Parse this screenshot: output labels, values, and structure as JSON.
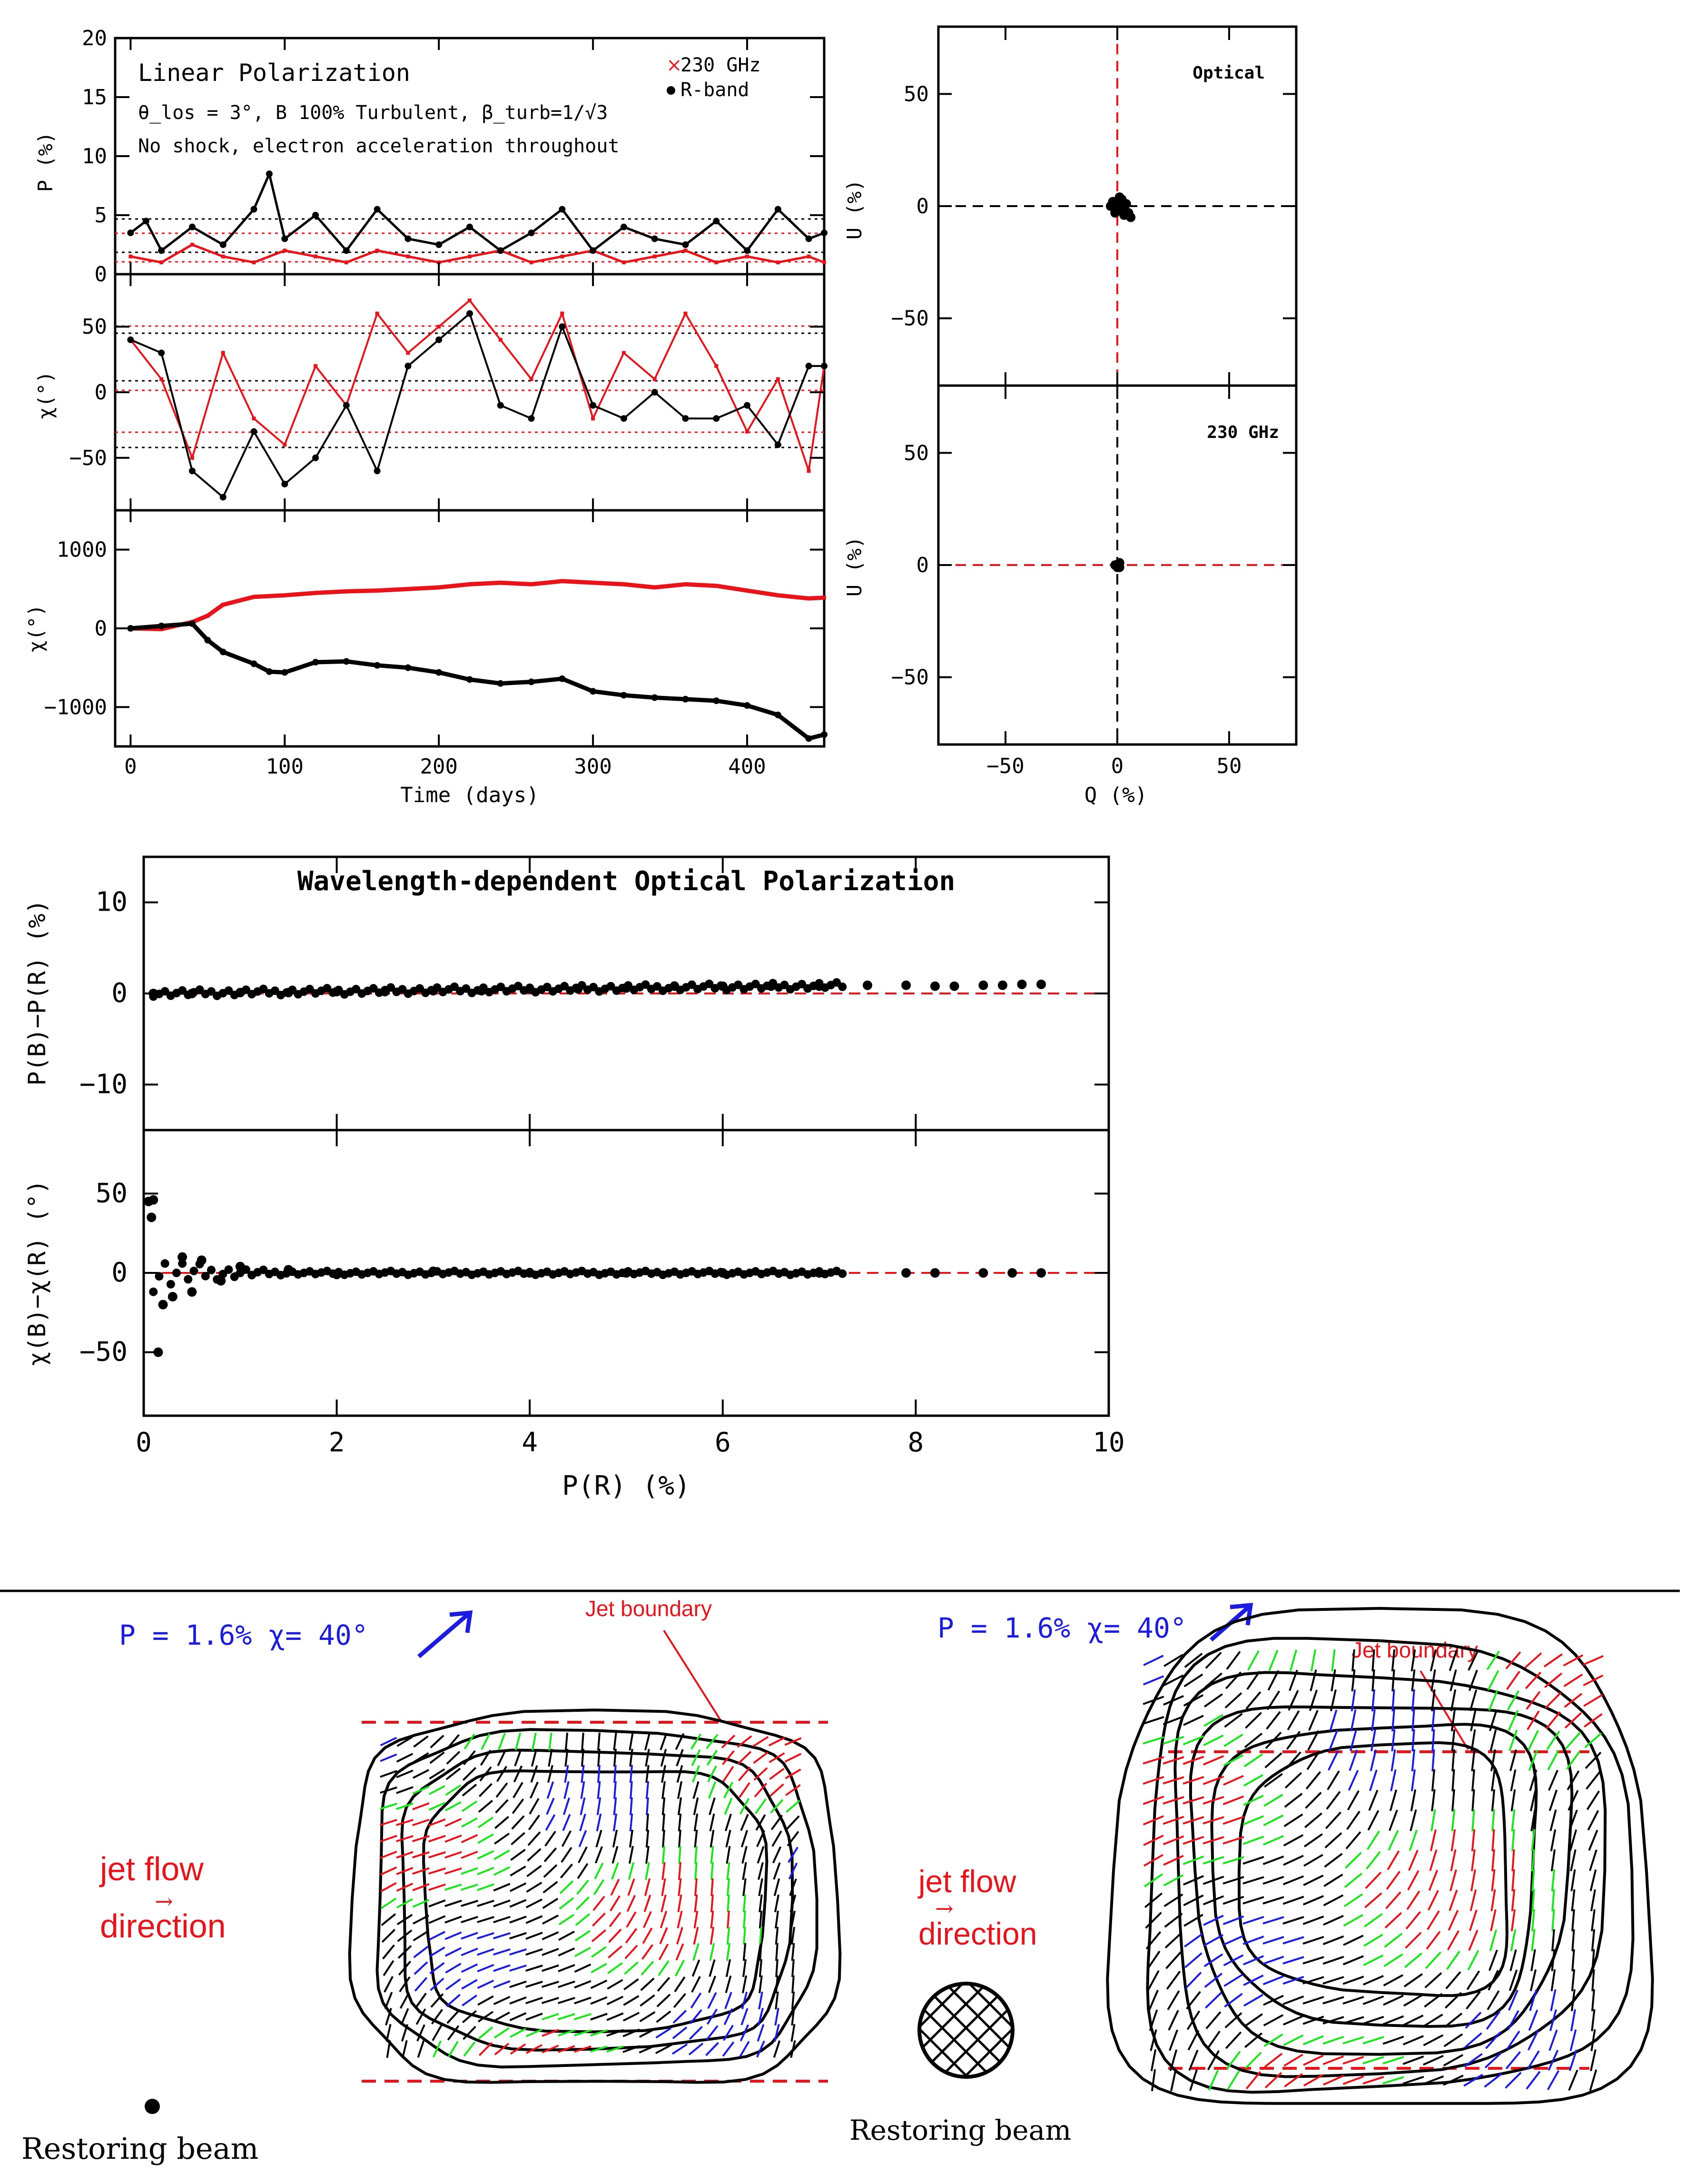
{
  "colors": {
    "red": "#e8141b",
    "black": "#000000",
    "blue": "#1c1ce0",
    "green": "#19e619"
  },
  "chart_data": [
    {
      "type": "scatter",
      "panel": "P vs time",
      "annotation": {
        "title": "Linear Polarization",
        "line2": "θ_los = 3°, B 100% Turbulent, β_turb=1/√3",
        "line3": "No shock, electron acceleration throughout"
      },
      "legend": [
        "230 GHz",
        "R-band"
      ],
      "legend_placement": "top-right",
      "ylabel": "P (%)",
      "xlim": [
        -10,
        450
      ],
      "ylim": [
        0,
        20
      ],
      "yticks": [
        "0",
        "5",
        "10",
        "15",
        "20"
      ],
      "series": [
        {
          "name": "230 GHz",
          "color": "red",
          "x": [
            0,
            20,
            40,
            60,
            80,
            100,
            120,
            140,
            160,
            180,
            200,
            220,
            240,
            260,
            280,
            300,
            320,
            340,
            360,
            380,
            400,
            420,
            440,
            450
          ],
          "y": [
            1.5,
            1.0,
            2.5,
            1.5,
            1.0,
            2.0,
            1.5,
            1.0,
            2.0,
            1.5,
            1.0,
            1.5,
            2.0,
            1.0,
            1.5,
            2.0,
            1.0,
            1.5,
            2.0,
            1.0,
            1.5,
            1.0,
            1.5,
            1.0
          ]
        },
        {
          "name": "R-band",
          "color": "black",
          "x": [
            0,
            10,
            20,
            40,
            60,
            80,
            90,
            100,
            120,
            140,
            160,
            180,
            200,
            220,
            240,
            260,
            280,
            300,
            320,
            340,
            360,
            380,
            400,
            420,
            440,
            450
          ],
          "y": [
            3.5,
            4.5,
            2.0,
            4.0,
            2.5,
            5.5,
            8.5,
            3.0,
            5.0,
            2.0,
            5.5,
            3.0,
            2.5,
            4.0,
            2.0,
            3.5,
            5.5,
            2.0,
            4.0,
            3.0,
            2.5,
            4.5,
            2.0,
            5.5,
            3.0,
            3.5
          ]
        }
      ]
    },
    {
      "type": "scatter",
      "panel": "chi vs time (wrapped)",
      "ylabel": "χ(°)",
      "ylim": [
        -90,
        90
      ],
      "yticks": [
        "−50",
        "0",
        "50"
      ],
      "series": [
        {
          "name": "230 GHz",
          "color": "red",
          "x": [
            0,
            20,
            40,
            60,
            80,
            100,
            120,
            140,
            160,
            180,
            200,
            220,
            240,
            260,
            280,
            300,
            320,
            340,
            360,
            380,
            400,
            420,
            440,
            450
          ],
          "y": [
            40,
            10,
            -50,
            30,
            -20,
            -40,
            20,
            -10,
            60,
            30,
            50,
            70,
            40,
            10,
            60,
            -20,
            30,
            10,
            60,
            20,
            -30,
            10,
            -60,
            20
          ]
        },
        {
          "name": "R-band",
          "color": "black",
          "x": [
            0,
            20,
            40,
            60,
            80,
            100,
            120,
            140,
            160,
            180,
            200,
            220,
            240,
            260,
            280,
            300,
            320,
            340,
            360,
            380,
            400,
            420,
            440,
            450
          ],
          "y": [
            40,
            30,
            -60,
            -80,
            -30,
            -70,
            -50,
            -10,
            -60,
            20,
            40,
            60,
            -10,
            -20,
            50,
            -10,
            -20,
            0,
            -20,
            -20,
            -10,
            -40,
            20,
            20
          ]
        }
      ]
    },
    {
      "type": "line",
      "panel": "chi vs time (unwrapped)",
      "ylabel": "χ(°)",
      "xlabel": "Time (days)",
      "ylim": [
        -1500,
        1500
      ],
      "yticks": [
        "−1000",
        "0",
        "1000"
      ],
      "xticks": [
        "0",
        "100",
        "200",
        "300",
        "400"
      ],
      "series": [
        {
          "name": "230 GHz",
          "color": "red",
          "x": [
            0,
            20,
            40,
            50,
            60,
            80,
            100,
            120,
            140,
            160,
            180,
            200,
            220,
            240,
            260,
            280,
            300,
            320,
            340,
            360,
            380,
            400,
            420,
            440,
            450
          ],
          "y": [
            0,
            -10,
            80,
            160,
            300,
            400,
            420,
            450,
            470,
            480,
            500,
            520,
            560,
            580,
            560,
            600,
            580,
            560,
            520,
            560,
            540,
            480,
            420,
            380,
            390
          ]
        },
        {
          "name": "R-band",
          "color": "black",
          "x": [
            0,
            20,
            40,
            50,
            60,
            80,
            90,
            100,
            120,
            140,
            160,
            180,
            200,
            220,
            240,
            260,
            280,
            300,
            320,
            340,
            360,
            380,
            400,
            420,
            440,
            450
          ],
          "y": [
            0,
            30,
            60,
            -150,
            -300,
            -450,
            -550,
            -560,
            -430,
            -420,
            -470,
            -500,
            -560,
            -650,
            -700,
            -680,
            -640,
            -800,
            -850,
            -880,
            -900,
            -920,
            -980,
            -1100,
            -1400,
            -1350
          ]
        }
      ]
    },
    {
      "type": "scatter",
      "panel": "Q-U Optical",
      "label": "Optical",
      "ylabel": "U (%)",
      "xlim": [
        -80,
        80
      ],
      "ylim": [
        -80,
        80
      ],
      "yticks": [
        "−50",
        "0",
        "50"
      ],
      "points": [
        [
          0,
          0
        ],
        [
          2,
          3
        ],
        [
          -2,
          2
        ],
        [
          3,
          -1
        ],
        [
          5,
          -3
        ],
        [
          -1,
          -3
        ],
        [
          1,
          4
        ],
        [
          4,
          1
        ],
        [
          -3,
          0
        ],
        [
          6,
          -5
        ],
        [
          3,
          -4
        ],
        [
          0,
          -2
        ]
      ]
    },
    {
      "type": "scatter",
      "panel": "Q-U 230 GHz",
      "label": "230 GHz",
      "ylabel": "U (%)",
      "xlabel": "Q (%)",
      "xlim": [
        -80,
        80
      ],
      "ylim": [
        -80,
        80
      ],
      "xticks": [
        "−50",
        "0",
        "50"
      ],
      "yticks": [
        "−50",
        "0",
        "50"
      ],
      "points": [
        [
          0,
          0
        ],
        [
          1,
          1
        ],
        [
          -1,
          0
        ],
        [
          0,
          -1
        ],
        [
          1,
          -1
        ]
      ]
    },
    {
      "type": "scatter",
      "panel": "P(B)-P(R) vs P(R)",
      "title": "Wavelength-dependent Optical Polarization",
      "ylabel": "P(B)−P(R) (%)",
      "xlim": [
        0,
        10
      ],
      "ylim": [
        -15,
        15
      ],
      "yticks": [
        "−10",
        "0",
        "10"
      ],
      "points": [
        [
          0.1,
          0.0
        ],
        [
          0.5,
          0.0
        ],
        [
          1.0,
          0.1
        ],
        [
          1.5,
          0.1
        ],
        [
          2.0,
          0.2
        ],
        [
          2.5,
          0.2
        ],
        [
          3.0,
          0.3
        ],
        [
          3.5,
          0.3
        ],
        [
          4.0,
          0.5
        ],
        [
          4.5,
          0.5
        ],
        [
          5.0,
          0.6
        ],
        [
          5.5,
          0.8
        ],
        [
          6.0,
          0.8
        ],
        [
          6.5,
          0.8
        ],
        [
          7.0,
          0.8
        ],
        [
          7.5,
          0.9
        ],
        [
          7.9,
          0.9
        ],
        [
          8.2,
          0.8
        ],
        [
          8.4,
          0.8
        ],
        [
          8.7,
          0.9
        ],
        [
          8.9,
          0.9
        ],
        [
          9.1,
          1.0
        ],
        [
          9.3,
          1.0
        ]
      ]
    },
    {
      "type": "scatter",
      "panel": "chi(B)-chi(R) vs P(R)",
      "ylabel": "χ(B)−χ(R) (°)",
      "xlabel": "P(R) (%)",
      "xlim": [
        0,
        10
      ],
      "ylim": [
        -90,
        90
      ],
      "xticks": [
        "0",
        "2",
        "4",
        "6",
        "8",
        "10"
      ],
      "yticks": [
        "−50",
        "0",
        "50"
      ],
      "points": [
        [
          0.05,
          45
        ],
        [
          0.1,
          46
        ],
        [
          0.08,
          35
        ],
        [
          0.15,
          -50
        ],
        [
          0.2,
          -20
        ],
        [
          0.3,
          -15
        ],
        [
          0.4,
          10
        ],
        [
          0.5,
          -12
        ],
        [
          0.6,
          8
        ],
        [
          0.8,
          -5
        ],
        [
          1.0,
          4
        ],
        [
          1.5,
          2
        ],
        [
          2.0,
          -1
        ],
        [
          3.0,
          1
        ],
        [
          4.0,
          0
        ],
        [
          5.0,
          0
        ],
        [
          6.0,
          0
        ],
        [
          7.0,
          0
        ],
        [
          7.9,
          0
        ],
        [
          8.2,
          0
        ],
        [
          8.7,
          0
        ],
        [
          9.0,
          0
        ],
        [
          9.3,
          0
        ]
      ]
    }
  ],
  "images": {
    "left": {
      "annotation": "P = 1.6%  χ= 40°",
      "jet_label": "Jet boundary",
      "flow_line1": "jet flow",
      "flow_line2": "direction",
      "beam_label": "Restoring beam"
    },
    "right": {
      "annotation": "P = 1.6%  χ= 40°",
      "jet_label": "Jet boundary",
      "flow_line1": "jet flow",
      "flow_line2": "direction",
      "beam_label": "Restoring beam"
    }
  }
}
